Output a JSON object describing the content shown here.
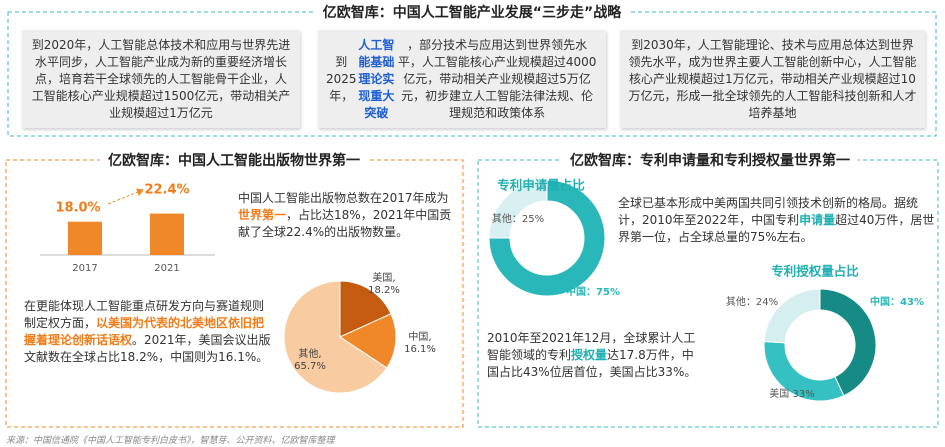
{
  "title": "亿欧智库：中国人工智能产业发展“三步走”战略",
  "stages": [
    {
      "segments": [
        "到2020年，人工智能总体技术和应用与世界先进水平同步，人工智能产业成为新的重要经济增长点，培育若干全球领先的人工智能骨干企业，人工智能核心产业规模超过1500亿元，带动相关产业规模超过1万亿元"
      ]
    },
    {
      "emphasis_color": "#1f5fd6",
      "segments": [
        "到2025年，",
        {
          "text": "人工智能基础理论实现重大突破",
          "emphasis": true
        },
        "，部分技术与应用达到世界领先水平，人工智能核心产业规模超过4000亿元，带动相关产业规模超过5万亿元，初步建立人工智能法律法规、伦理规范和政策体系"
      ]
    },
    {
      "segments": [
        "到2030年，人工智能理论、技术与应用总体达到世界领先水平，成为世界主要人工智能创新中心，人工智能核心产业规模超过1万亿元，带动相关产业规模超过10万亿元，形成一批全球领先的人工智能科技创新和人才培养基地"
      ]
    }
  ],
  "panels": [
    {
      "title": "亿欧智库：中国人工智能出版物世界第一",
      "color": "#f0882a",
      "emphasis_color": "#f07d1a",
      "paragraphs": [
        [
          "中国人工智能出版物总数在2017年成为",
          {
            "text": "世界第一",
            "emphasis": true
          },
          "，占比达18%，2021年中国贡献了全球22.4%的出版物数量。"
        ],
        [
          "在更能体现人工智能重点研发方向与赛道规则制定权方面，",
          {
            "text": "以美国为代表的北美地区依旧把握着理论创新话语权",
            "emphasis": true
          },
          "。2021年，美国会议出版文献数在全球占比18.2%，中国则为16.1%。"
        ]
      ]
    },
    {
      "title": "亿欧智库：专利申请量和专利授权量世界第一",
      "color": "#3bb8c4",
      "emphasis_color": "#1fb0b3",
      "paragraphs": [
        [
          "全球已基本形成中美两国共同引领技术创新的格局。据统计，2010年至2022年，中国专利",
          {
            "text": "申请量",
            "emphasis": true
          },
          "超过40万件，居世界第一位，占全球总量的75%左右。"
        ],
        [
          "2010年至2021年12月，全球累计人工智能领域的专利",
          {
            "text": "授权量",
            "emphasis": true
          },
          "达17.8万件，中国占比43%位居首位，美国占比33%。"
        ]
      ]
    }
  ],
  "chart_data": [
    {
      "type": "bar",
      "categories": [
        "2017",
        "2021"
      ],
      "values": [
        18.0,
        22.4
      ],
      "value_labels": [
        "18.0%",
        "22.4%"
      ],
      "color": "#f0882a",
      "label_color": "#f07d1a"
    },
    {
      "type": "pie",
      "values": [
        18.2,
        16.1,
        65.7
      ],
      "value_labels": [
        "美国,\n18.2%",
        "中国,\n16.1%",
        "其他,\n65.7%"
      ],
      "colors": [
        "#c55a11",
        "#f0882a",
        "#f8cba0"
      ]
    },
    {
      "type": "donut",
      "title": "专利申请量占比",
      "values": [
        75,
        25
      ],
      "value_labels": [
        "中国：75%",
        "其他：25%"
      ],
      "colors": [
        "#2ab7b9",
        "#d8f0f1"
      ],
      "label_colors": [
        "#2ab7b9",
        "#555555"
      ]
    },
    {
      "type": "donut",
      "title": "专利授权量占比",
      "values": [
        43,
        33,
        24
      ],
      "value_labels": [
        "中国：43%",
        "美国 33%",
        "其他：24%"
      ],
      "colors": [
        "#168a85",
        "#35c0c2",
        "#d5eef0"
      ],
      "label_colors": [
        "#2ab7b9",
        "#555555",
        "#555555"
      ]
    }
  ],
  "source": "来源：中国信通院《中国人工智能专利白皮书》，智慧芽、公开资料、亿欧智库整理"
}
